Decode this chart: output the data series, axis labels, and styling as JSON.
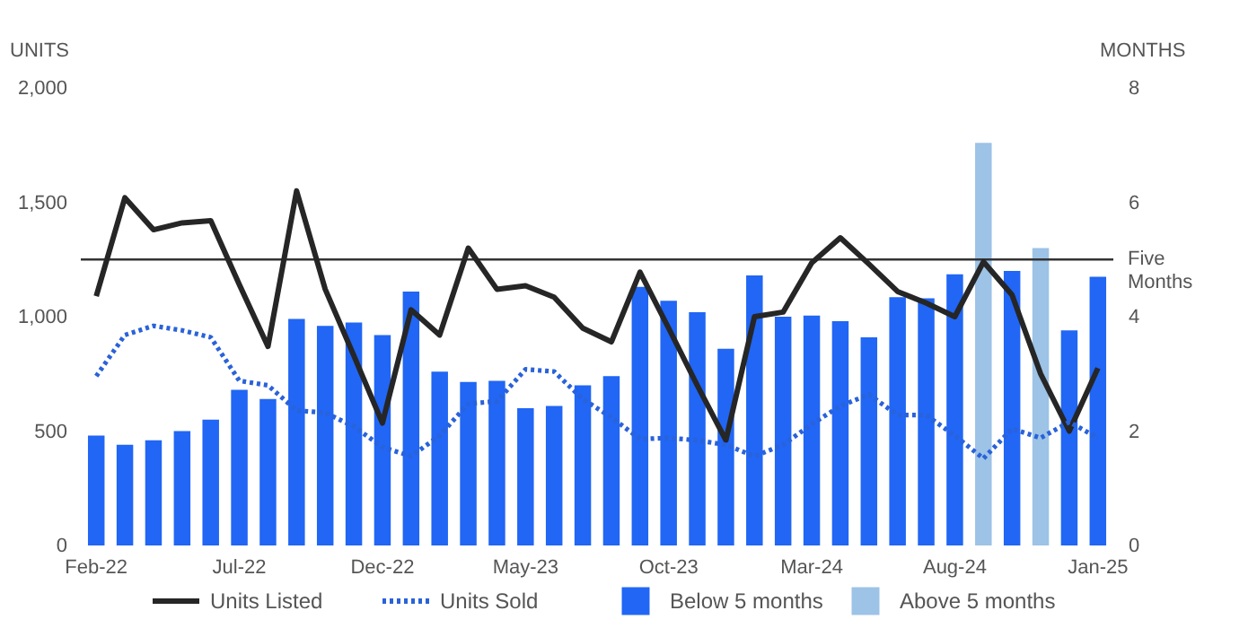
{
  "chart_data": {
    "type": "bar",
    "ylabel": "UNITS",
    "y2label": "MONTHS",
    "categories": [
      "Feb-22",
      null,
      null,
      null,
      null,
      "Jul-22",
      null,
      null,
      null,
      null,
      "Dec-22",
      null,
      null,
      null,
      null,
      "May-23",
      null,
      null,
      null,
      null,
      "Oct-23",
      null,
      null,
      null,
      null,
      "Mar-24",
      null,
      null,
      null,
      null,
      "Aug-24",
      null,
      null,
      null,
      null,
      "Jan-25"
    ],
    "series": [
      {
        "name": "Units Listed",
        "type": "line",
        "axis": "y",
        "color": "#262626",
        "line_style": "solid",
        "values": [
          1090,
          1520,
          1380,
          1410,
          1420,
          1140,
          870,
          1550,
          1120,
          830,
          535,
          1030,
          920,
          1300,
          1120,
          1135,
          1085,
          950,
          890,
          1195,
          950,
          700,
          460,
          1000,
          1020,
          1235,
          1345,
          1230,
          1110,
          1060,
          1000,
          1240,
          1095,
          750,
          500,
          775
        ]
      },
      {
        "name": "Units Sold",
        "type": "line",
        "axis": "y",
        "color": "#2a62d9",
        "line_style": "dotted",
        "values": [
          740,
          920,
          960,
          940,
          910,
          720,
          700,
          590,
          580,
          520,
          430,
          390,
          480,
          620,
          630,
          770,
          760,
          640,
          560,
          465,
          470,
          460,
          440,
          390,
          440,
          530,
          610,
          660,
          570,
          570,
          480,
          380,
          510,
          470,
          540,
          470
        ]
      },
      {
        "name": "Below 5 months",
        "axis": "y2",
        "color": "#2166f4",
        "values": [
          1.92,
          1.76,
          1.84,
          2.0,
          2.2,
          2.72,
          2.56,
          3.96,
          3.84,
          3.9,
          3.68,
          4.44,
          3.04,
          2.86,
          2.88,
          2.4,
          2.44,
          2.8,
          2.96,
          4.52,
          4.28,
          4.08,
          3.44,
          4.72,
          4.0,
          4.02,
          3.92,
          3.64,
          4.34,
          4.32,
          4.74,
          null,
          4.8,
          null,
          3.76,
          4.7
        ]
      },
      {
        "name": "Above 5 months",
        "axis": "y2",
        "color": "#9dc3e6",
        "values": [
          null,
          null,
          null,
          null,
          null,
          null,
          null,
          null,
          null,
          null,
          null,
          null,
          null,
          null,
          null,
          null,
          null,
          null,
          null,
          null,
          null,
          null,
          null,
          null,
          null,
          null,
          null,
          null,
          null,
          null,
          null,
          7.04,
          null,
          5.2,
          null,
          null
        ]
      }
    ],
    "ylim": [
      0,
      2000
    ],
    "yticks": [
      0,
      500,
      {
        "value": 1000,
        "label": "1,000"
      },
      {
        "value": 1500,
        "label": "1,500"
      },
      {
        "value": 2000,
        "label": "2,000"
      }
    ],
    "y2lim": [
      0,
      8
    ],
    "y2ticks": [
      0,
      2,
      4,
      6,
      8
    ],
    "ref_lines": [
      {
        "axis": "y2",
        "value": 5,
        "label": "Five Months",
        "color": "#333333"
      }
    ],
    "legend": "bottom",
    "grid": false
  }
}
